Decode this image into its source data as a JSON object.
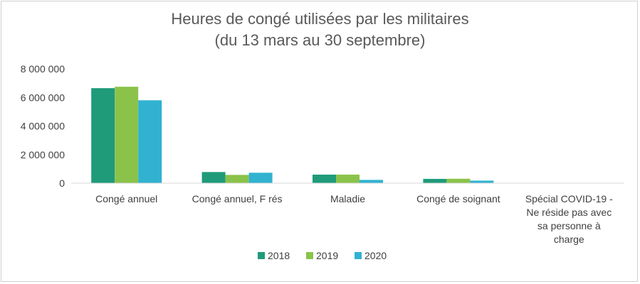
{
  "chart_data": {
    "type": "bar",
    "title_line1": "Heures de congé utilisées par les militaires",
    "title_line2": "(du 13 mars au 30 septembre)",
    "xlabel": "",
    "ylabel": "",
    "ylim": [
      0,
      8000000
    ],
    "yticks": [
      0,
      2000000,
      4000000,
      6000000,
      8000000
    ],
    "ytick_labels": [
      "0",
      "2 000 000",
      "4 000 000",
      "6 000 000",
      "8 000 000"
    ],
    "grid": false,
    "legend_position": "bottom",
    "categories": [
      [
        "Congé annuel"
      ],
      [
        "Congé annuel, F rés"
      ],
      [
        "Maladie"
      ],
      [
        "Congé de soignant"
      ],
      [
        "Spécial COVID-19 -",
        "Ne réside pas avec",
        "sa personne à",
        "charge"
      ]
    ],
    "series": [
      {
        "name": "2018",
        "color": "#1f9b7a",
        "values": [
          6650000,
          780000,
          600000,
          300000,
          0
        ]
      },
      {
        "name": "2019",
        "color": "#8bc34a",
        "values": [
          6750000,
          580000,
          600000,
          310000,
          0
        ]
      },
      {
        "name": "2020",
        "color": "#31b2d1",
        "values": [
          5800000,
          730000,
          230000,
          180000,
          0
        ]
      }
    ]
  }
}
